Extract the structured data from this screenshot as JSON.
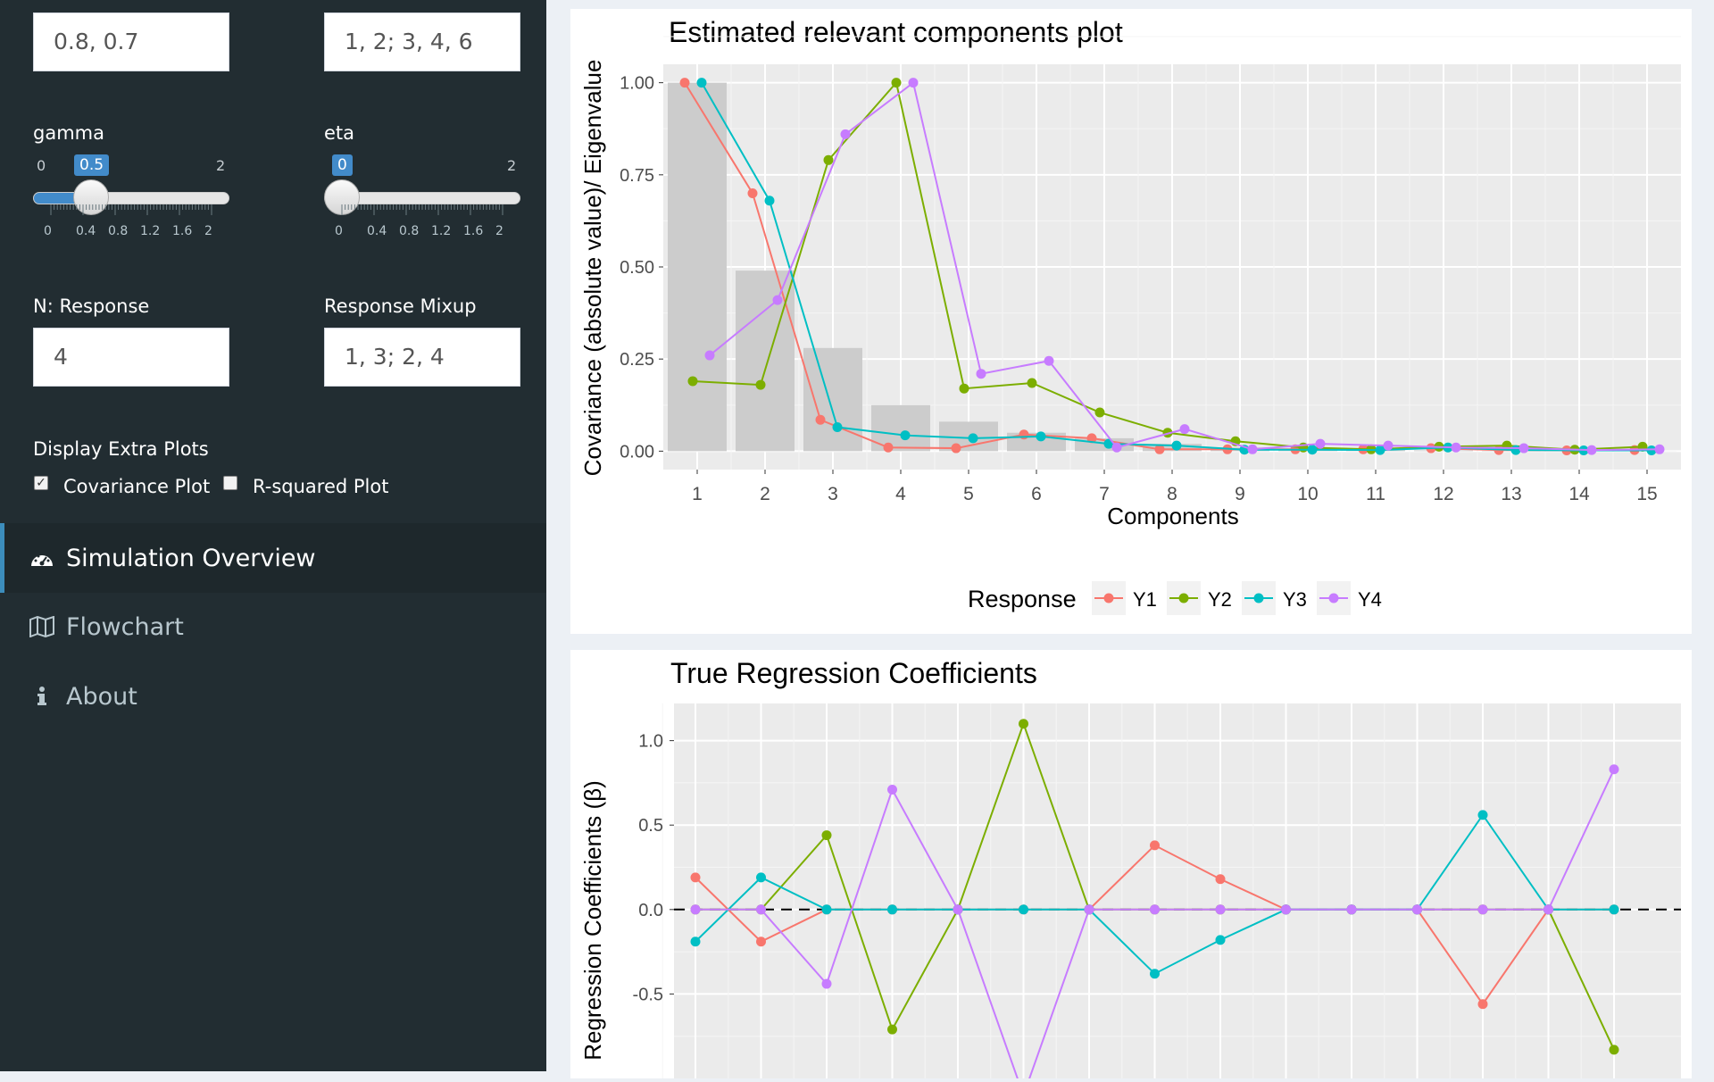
{
  "sidebar": {
    "inputs": {
      "top_left_value": "0.8, 0.7",
      "top_right_value": "1, 2; 3, 4, 6",
      "n_response_label": "N: Response",
      "n_response_value": "4",
      "mixup_label": "Response Mixup",
      "mixup_value": "1, 3; 2, 4"
    },
    "gamma": {
      "label": "gamma",
      "min": "0",
      "max": "2",
      "value": "0.5",
      "level": 0.25,
      "ticks": [
        "0",
        "0.4",
        "0.8",
        "1.2",
        "1.6",
        "2"
      ]
    },
    "eta": {
      "label": "eta",
      "min": "0",
      "max": "2",
      "value": "0",
      "level": 0.0,
      "ticks": [
        "0",
        "0.4",
        "0.8",
        "1.2",
        "1.6",
        "2"
      ]
    },
    "extra_plots": {
      "label": "Display Extra Plots",
      "covariance_label": "Covariance Plot",
      "covariance_checked": true,
      "rsquared_label": "R-squared Plot",
      "rsquared_checked": false
    },
    "menu": [
      {
        "label": "Simulation Overview",
        "icon": "dashboard-icon",
        "active": true
      },
      {
        "label": "Flowchart",
        "icon": "map-icon",
        "active": false
      },
      {
        "label": "About",
        "icon": "info-icon",
        "active": false
      }
    ]
  },
  "chart_data": [
    {
      "type": "line",
      "title": "Estimated relevant components plot",
      "xlabel": "Components",
      "ylabel": "Covariance (absolute value)/ Eigenvalue",
      "x": [
        1,
        2,
        3,
        4,
        5,
        6,
        7,
        8,
        9,
        10,
        11,
        12,
        13,
        14,
        15
      ],
      "ylim": [
        -0.05,
        1.05
      ],
      "yticks": [
        "0.00",
        "0.25",
        "0.50",
        "0.75",
        "1.00"
      ],
      "bars_name": "Eigenvalue",
      "bars": [
        1.0,
        0.49,
        0.28,
        0.125,
        0.08,
        0.05,
        0.035,
        0.02,
        0.01,
        0.005,
        0.003,
        0.002,
        0.001,
        0.0005,
        0.0003
      ],
      "legend_title": "Response",
      "series": [
        {
          "name": "Y1",
          "color": "#F8766D",
          "values": [
            1.0,
            0.7,
            0.085,
            0.01,
            0.008,
            0.045,
            0.035,
            0.005,
            0.005,
            0.005,
            0.005,
            0.008,
            0.003,
            0.002,
            0.003
          ]
        },
        {
          "name": "Y2",
          "color": "#7CAE00",
          "values": [
            0.19,
            0.18,
            0.79,
            1.0,
            0.17,
            0.185,
            0.105,
            0.05,
            0.027,
            0.01,
            0.005,
            0.012,
            0.015,
            0.004,
            0.012
          ]
        },
        {
          "name": "Y3",
          "color": "#00BFC4",
          "values": [
            1.0,
            0.68,
            0.065,
            0.043,
            0.035,
            0.04,
            0.02,
            0.015,
            0.004,
            0.004,
            0.003,
            0.01,
            0.003,
            0.002,
            0.002
          ]
        },
        {
          "name": "Y4",
          "color": "#C77CFF",
          "values": [
            0.26,
            0.41,
            0.86,
            1.0,
            0.21,
            0.245,
            0.01,
            0.06,
            0.005,
            0.02,
            0.015,
            0.01,
            0.008,
            0.003,
            0.005
          ]
        }
      ]
    },
    {
      "type": "line",
      "title": "True Regression Coefficients",
      "xlabel": "",
      "ylabel": "Regression Coefficients (β)",
      "x": [
        1,
        2,
        3,
        4,
        5,
        6,
        7,
        8,
        9,
        10,
        11,
        12,
        13,
        14,
        15
      ],
      "ylim": [
        -1.0,
        1.22
      ],
      "yticks": [
        "1.0",
        "0.5",
        "0.0",
        "-0.5"
      ],
      "series": [
        {
          "name": "Y1",
          "color": "#F8766D",
          "values": [
            0.19,
            -0.19,
            0,
            0,
            0,
            0,
            0,
            0.38,
            0.18,
            0,
            0,
            0,
            -0.56,
            0,
            0
          ]
        },
        {
          "name": "Y2",
          "color": "#7CAE00",
          "values": [
            0,
            0,
            0.44,
            -0.71,
            0,
            1.1,
            0,
            0,
            0,
            0,
            0,
            0,
            0,
            0,
            -0.83
          ]
        },
        {
          "name": "Y3",
          "color": "#00BFC4",
          "values": [
            -0.19,
            0.19,
            0,
            0,
            0,
            0,
            0,
            -0.38,
            -0.18,
            0,
            0,
            0,
            0.56,
            0,
            0
          ]
        },
        {
          "name": "Y4",
          "color": "#C77CFF",
          "values": [
            0,
            0,
            -0.44,
            0.71,
            0,
            -1.1,
            0,
            0,
            0,
            0,
            0,
            0,
            0,
            0,
            0.83
          ]
        }
      ]
    }
  ]
}
